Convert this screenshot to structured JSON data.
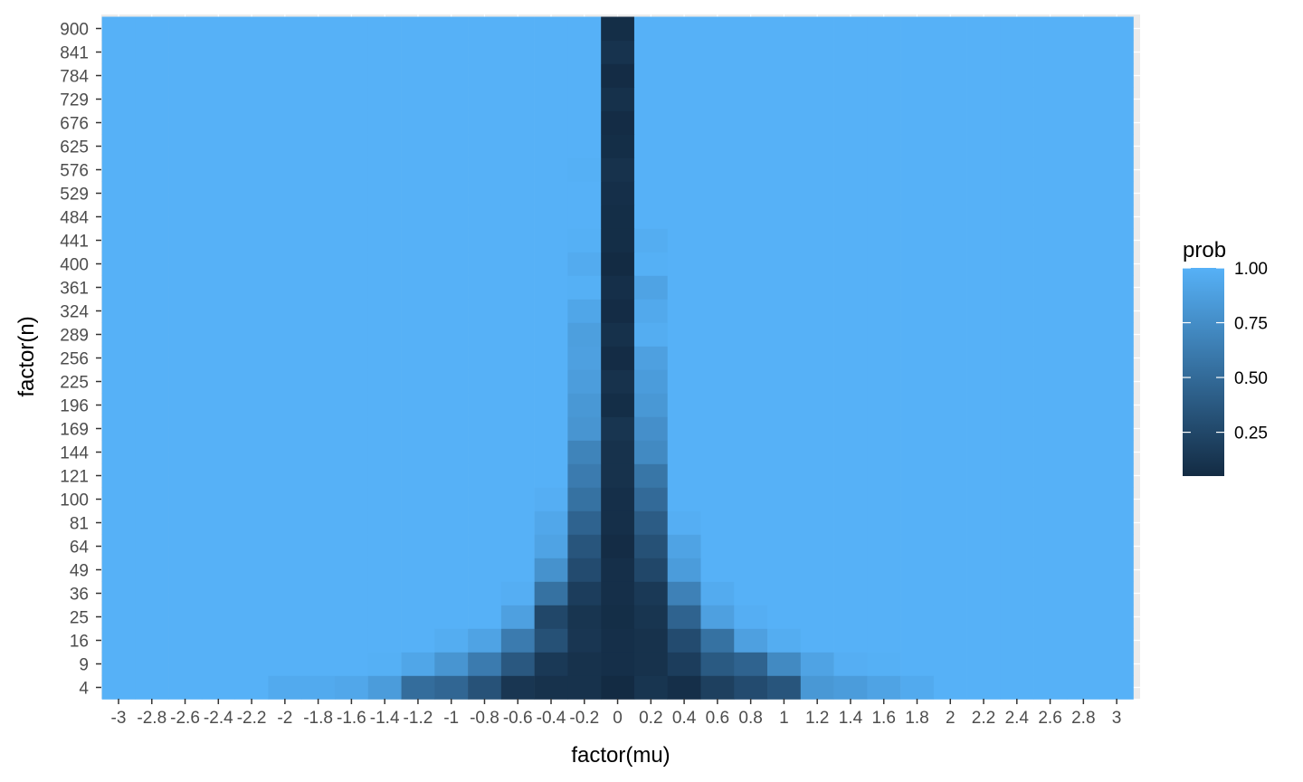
{
  "chart_data": {
    "type": "heatmap",
    "xlabel": "factor(mu)",
    "ylabel": "factor(n)",
    "x_categories": [
      "-3",
      "-2.8",
      "-2.6",
      "-2.4",
      "-2.2",
      "-2",
      "-1.8",
      "-1.6",
      "-1.4",
      "-1.2",
      "-1",
      "-0.8",
      "-0.6",
      "-0.4",
      "-0.2",
      "0",
      "0.2",
      "0.4",
      "0.6",
      "0.8",
      "1",
      "1.2",
      "1.4",
      "1.6",
      "1.8",
      "2",
      "2.2",
      "2.4",
      "2.6",
      "2.8",
      "3"
    ],
    "y_categories": [
      "4",
      "9",
      "16",
      "25",
      "36",
      "49",
      "64",
      "81",
      "100",
      "121",
      "144",
      "169",
      "196",
      "225",
      "256",
      "289",
      "324",
      "361",
      "400",
      "441",
      "484",
      "529",
      "576",
      "625",
      "676",
      "729",
      "784",
      "841",
      "900"
    ],
    "values": [
      [
        1.0,
        1.0,
        1.0,
        1.0,
        1.0,
        0.95,
        0.95,
        0.93,
        0.85,
        0.52,
        0.47,
        0.33,
        0.13,
        0.1,
        0.1,
        0.05,
        0.12,
        0.08,
        0.2,
        0.28,
        0.35,
        0.82,
        0.85,
        0.9,
        0.95,
        1.0,
        1.0,
        1.0,
        1.0,
        1.0,
        1.0
      ],
      [
        1.0,
        1.0,
        1.0,
        1.0,
        1.0,
        1.0,
        1.0,
        1.0,
        0.99,
        0.92,
        0.8,
        0.62,
        0.37,
        0.15,
        0.1,
        0.08,
        0.1,
        0.18,
        0.38,
        0.45,
        0.72,
        0.9,
        0.98,
        0.99,
        1.0,
        1.0,
        1.0,
        1.0,
        1.0,
        1.0,
        1.0
      ],
      [
        1.0,
        1.0,
        1.0,
        1.0,
        1.0,
        1.0,
        1.0,
        1.0,
        1.0,
        1.0,
        0.97,
        0.9,
        0.62,
        0.32,
        0.13,
        0.08,
        0.1,
        0.28,
        0.55,
        0.88,
        0.97,
        1.0,
        1.0,
        1.0,
        1.0,
        1.0,
        1.0,
        1.0,
        1.0,
        1.0,
        1.0
      ],
      [
        1.0,
        1.0,
        1.0,
        1.0,
        1.0,
        1.0,
        1.0,
        1.0,
        1.0,
        1.0,
        1.0,
        1.0,
        0.88,
        0.25,
        0.12,
        0.07,
        0.12,
        0.45,
        0.88,
        0.98,
        1.0,
        1.0,
        1.0,
        1.0,
        1.0,
        1.0,
        1.0,
        1.0,
        1.0,
        1.0,
        1.0
      ],
      [
        1.0,
        1.0,
        1.0,
        1.0,
        1.0,
        1.0,
        1.0,
        1.0,
        1.0,
        1.0,
        1.0,
        1.0,
        0.98,
        0.55,
        0.18,
        0.08,
        0.15,
        0.66,
        0.96,
        1.0,
        1.0,
        1.0,
        1.0,
        1.0,
        1.0,
        1.0,
        1.0,
        1.0,
        1.0,
        1.0,
        1.0
      ],
      [
        1.0,
        1.0,
        1.0,
        1.0,
        1.0,
        1.0,
        1.0,
        1.0,
        1.0,
        1.0,
        1.0,
        1.0,
        1.0,
        0.78,
        0.28,
        0.08,
        0.25,
        0.85,
        1.0,
        1.0,
        1.0,
        1.0,
        1.0,
        1.0,
        1.0,
        1.0,
        1.0,
        1.0,
        1.0,
        1.0,
        1.0
      ],
      [
        1.0,
        1.0,
        1.0,
        1.0,
        1.0,
        1.0,
        1.0,
        1.0,
        1.0,
        1.0,
        1.0,
        1.0,
        1.0,
        0.9,
        0.35,
        0.06,
        0.32,
        0.9,
        1.0,
        1.0,
        1.0,
        1.0,
        1.0,
        1.0,
        1.0,
        1.0,
        1.0,
        1.0,
        1.0,
        1.0,
        1.0
      ],
      [
        1.0,
        1.0,
        1.0,
        1.0,
        1.0,
        1.0,
        1.0,
        1.0,
        1.0,
        1.0,
        1.0,
        1.0,
        1.0,
        0.93,
        0.45,
        0.08,
        0.4,
        0.98,
        1.0,
        1.0,
        1.0,
        1.0,
        1.0,
        1.0,
        1.0,
        1.0,
        1.0,
        1.0,
        1.0,
        1.0,
        1.0
      ],
      [
        1.0,
        1.0,
        1.0,
        1.0,
        1.0,
        1.0,
        1.0,
        1.0,
        1.0,
        1.0,
        1.0,
        1.0,
        1.0,
        0.98,
        0.55,
        0.08,
        0.5,
        1.0,
        1.0,
        1.0,
        1.0,
        1.0,
        1.0,
        1.0,
        1.0,
        1.0,
        1.0,
        1.0,
        1.0,
        1.0,
        1.0
      ],
      [
        1.0,
        1.0,
        1.0,
        1.0,
        1.0,
        1.0,
        1.0,
        1.0,
        1.0,
        1.0,
        1.0,
        1.0,
        1.0,
        1.0,
        0.62,
        0.1,
        0.58,
        1.0,
        1.0,
        1.0,
        1.0,
        1.0,
        1.0,
        1.0,
        1.0,
        1.0,
        1.0,
        1.0,
        1.0,
        1.0,
        1.0
      ],
      [
        1.0,
        1.0,
        1.0,
        1.0,
        1.0,
        1.0,
        1.0,
        1.0,
        1.0,
        1.0,
        1.0,
        1.0,
        1.0,
        1.0,
        0.68,
        0.1,
        0.72,
        1.0,
        1.0,
        1.0,
        1.0,
        1.0,
        1.0,
        1.0,
        1.0,
        1.0,
        1.0,
        1.0,
        1.0,
        1.0,
        1.0
      ],
      [
        1.0,
        1.0,
        1.0,
        1.0,
        1.0,
        1.0,
        1.0,
        1.0,
        1.0,
        1.0,
        1.0,
        1.0,
        1.0,
        1.0,
        0.8,
        0.12,
        0.76,
        1.0,
        1.0,
        1.0,
        1.0,
        1.0,
        1.0,
        1.0,
        1.0,
        1.0,
        1.0,
        1.0,
        1.0,
        1.0,
        1.0
      ],
      [
        1.0,
        1.0,
        1.0,
        1.0,
        1.0,
        1.0,
        1.0,
        1.0,
        1.0,
        1.0,
        1.0,
        1.0,
        1.0,
        1.0,
        0.82,
        0.07,
        0.82,
        1.0,
        1.0,
        1.0,
        1.0,
        1.0,
        1.0,
        1.0,
        1.0,
        1.0,
        1.0,
        1.0,
        1.0,
        1.0,
        1.0
      ],
      [
        1.0,
        1.0,
        1.0,
        1.0,
        1.0,
        1.0,
        1.0,
        1.0,
        1.0,
        1.0,
        1.0,
        1.0,
        1.0,
        1.0,
        0.86,
        0.1,
        0.85,
        1.0,
        1.0,
        1.0,
        1.0,
        1.0,
        1.0,
        1.0,
        1.0,
        1.0,
        1.0,
        1.0,
        1.0,
        1.0,
        1.0
      ],
      [
        1.0,
        1.0,
        1.0,
        1.0,
        1.0,
        1.0,
        1.0,
        1.0,
        1.0,
        1.0,
        1.0,
        1.0,
        1.0,
        1.0,
        0.88,
        0.06,
        0.88,
        1.0,
        1.0,
        1.0,
        1.0,
        1.0,
        1.0,
        1.0,
        1.0,
        1.0,
        1.0,
        1.0,
        1.0,
        1.0,
        1.0
      ],
      [
        1.0,
        1.0,
        1.0,
        1.0,
        1.0,
        1.0,
        1.0,
        1.0,
        1.0,
        1.0,
        1.0,
        1.0,
        1.0,
        1.0,
        0.87,
        0.09,
        0.97,
        1.0,
        1.0,
        1.0,
        1.0,
        1.0,
        1.0,
        1.0,
        1.0,
        1.0,
        1.0,
        1.0,
        1.0,
        1.0,
        1.0
      ],
      [
        1.0,
        1.0,
        1.0,
        1.0,
        1.0,
        1.0,
        1.0,
        1.0,
        1.0,
        1.0,
        1.0,
        1.0,
        1.0,
        1.0,
        0.92,
        0.06,
        0.94,
        1.0,
        1.0,
        1.0,
        1.0,
        1.0,
        1.0,
        1.0,
        1.0,
        1.0,
        1.0,
        1.0,
        1.0,
        1.0,
        1.0
      ],
      [
        1.0,
        1.0,
        1.0,
        1.0,
        1.0,
        1.0,
        1.0,
        1.0,
        1.0,
        1.0,
        1.0,
        1.0,
        1.0,
        1.0,
        0.99,
        0.08,
        0.9,
        1.0,
        1.0,
        1.0,
        1.0,
        1.0,
        1.0,
        1.0,
        1.0,
        1.0,
        1.0,
        1.0,
        1.0,
        1.0,
        1.0
      ],
      [
        1.0,
        1.0,
        1.0,
        1.0,
        1.0,
        1.0,
        1.0,
        1.0,
        1.0,
        1.0,
        1.0,
        1.0,
        1.0,
        1.0,
        0.96,
        0.05,
        0.99,
        1.0,
        1.0,
        1.0,
        1.0,
        1.0,
        1.0,
        1.0,
        1.0,
        1.0,
        1.0,
        1.0,
        1.0,
        1.0,
        1.0
      ],
      [
        1.0,
        1.0,
        1.0,
        1.0,
        1.0,
        1.0,
        1.0,
        1.0,
        1.0,
        1.0,
        1.0,
        1.0,
        1.0,
        1.0,
        0.99,
        0.07,
        0.97,
        1.0,
        1.0,
        1.0,
        1.0,
        1.0,
        1.0,
        1.0,
        1.0,
        1.0,
        1.0,
        1.0,
        1.0,
        1.0,
        1.0
      ],
      [
        1.0,
        1.0,
        1.0,
        1.0,
        1.0,
        1.0,
        1.0,
        1.0,
        1.0,
        1.0,
        1.0,
        1.0,
        1.0,
        1.0,
        1.0,
        0.07,
        1.0,
        1.0,
        1.0,
        1.0,
        1.0,
        1.0,
        1.0,
        1.0,
        1.0,
        1.0,
        1.0,
        1.0,
        1.0,
        1.0,
        1.0
      ],
      [
        1.0,
        1.0,
        1.0,
        1.0,
        1.0,
        1.0,
        1.0,
        1.0,
        1.0,
        1.0,
        1.0,
        1.0,
        1.0,
        1.0,
        1.0,
        0.08,
        1.0,
        1.0,
        1.0,
        1.0,
        1.0,
        1.0,
        1.0,
        1.0,
        1.0,
        1.0,
        1.0,
        1.0,
        1.0,
        1.0,
        1.0
      ],
      [
        1.0,
        1.0,
        1.0,
        1.0,
        1.0,
        1.0,
        1.0,
        1.0,
        1.0,
        1.0,
        1.0,
        1.0,
        1.0,
        1.0,
        0.99,
        0.1,
        1.0,
        1.0,
        1.0,
        1.0,
        1.0,
        1.0,
        1.0,
        1.0,
        1.0,
        1.0,
        1.0,
        1.0,
        1.0,
        1.0,
        1.0
      ],
      [
        1.0,
        1.0,
        1.0,
        1.0,
        1.0,
        1.0,
        1.0,
        1.0,
        1.0,
        1.0,
        1.0,
        1.0,
        1.0,
        1.0,
        1.0,
        0.07,
        1.0,
        1.0,
        1.0,
        1.0,
        1.0,
        1.0,
        1.0,
        1.0,
        1.0,
        1.0,
        1.0,
        1.0,
        1.0,
        1.0,
        1.0
      ],
      [
        1.0,
        1.0,
        1.0,
        1.0,
        1.0,
        1.0,
        1.0,
        1.0,
        1.0,
        1.0,
        1.0,
        1.0,
        1.0,
        1.0,
        1.0,
        0.06,
        1.0,
        1.0,
        1.0,
        1.0,
        1.0,
        1.0,
        1.0,
        1.0,
        1.0,
        1.0,
        1.0,
        1.0,
        1.0,
        1.0,
        1.0
      ],
      [
        1.0,
        1.0,
        1.0,
        1.0,
        1.0,
        1.0,
        1.0,
        1.0,
        1.0,
        1.0,
        1.0,
        1.0,
        1.0,
        1.0,
        1.0,
        0.09,
        1.0,
        1.0,
        1.0,
        1.0,
        1.0,
        1.0,
        1.0,
        1.0,
        1.0,
        1.0,
        1.0,
        1.0,
        1.0,
        1.0,
        1.0
      ],
      [
        1.0,
        1.0,
        1.0,
        1.0,
        1.0,
        1.0,
        1.0,
        1.0,
        1.0,
        1.0,
        1.0,
        1.0,
        1.0,
        1.0,
        1.0,
        0.06,
        1.0,
        1.0,
        1.0,
        1.0,
        1.0,
        1.0,
        1.0,
        1.0,
        1.0,
        1.0,
        1.0,
        1.0,
        1.0,
        1.0,
        1.0
      ],
      [
        1.0,
        1.0,
        1.0,
        1.0,
        1.0,
        1.0,
        1.0,
        1.0,
        1.0,
        1.0,
        1.0,
        1.0,
        1.0,
        1.0,
        1.0,
        0.11,
        1.0,
        1.0,
        1.0,
        1.0,
        1.0,
        1.0,
        1.0,
        1.0,
        1.0,
        1.0,
        1.0,
        1.0,
        1.0,
        1.0,
        1.0
      ],
      [
        1.0,
        1.0,
        1.0,
        1.0,
        1.0,
        1.0,
        1.0,
        1.0,
        1.0,
        1.0,
        1.0,
        1.0,
        1.0,
        1.0,
        1.0,
        0.07,
        1.0,
        1.0,
        1.0,
        1.0,
        1.0,
        1.0,
        1.0,
        1.0,
        1.0,
        1.0,
        1.0,
        1.0,
        1.0,
        1.0,
        1.0
      ]
    ],
    "legend": {
      "title": "prob",
      "position": "right",
      "breaks": [
        0.25,
        0.5,
        0.75,
        1.0
      ],
      "labels": [
        "0.25",
        "0.50",
        "0.75",
        "1.00"
      ],
      "range": [
        0.05,
        1.0
      ],
      "low_color": "#132B43",
      "high_color": "#56B1F7"
    },
    "grid": true
  }
}
